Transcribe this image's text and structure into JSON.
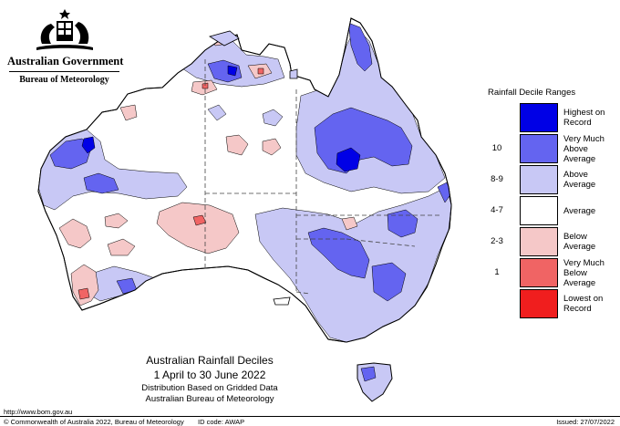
{
  "header": {
    "government": "Australian Government",
    "bureau": "Bureau of Meteorology"
  },
  "legend": {
    "title": "Rainfall Decile Ranges",
    "items": [
      {
        "range": "",
        "label": "Highest on Record",
        "color": "#0000e6"
      },
      {
        "range": "10",
        "label": "Very Much Above Average",
        "color": "#6464f0"
      },
      {
        "range": "8-9",
        "label": "Above Average",
        "color": "#c8c8f5"
      },
      {
        "range": "4-7",
        "label": "Average",
        "color": "#ffffff"
      },
      {
        "range": "2-3",
        "label": "Below Average",
        "color": "#f5c8c8"
      },
      {
        "range": "1",
        "label": "Very Much Below Average",
        "color": "#f06464"
      },
      {
        "range": "",
        "label": "Lowest on Record",
        "color": "#f01e1e"
      }
    ]
  },
  "map_title": {
    "line1": "Australian Rainfall Deciles",
    "line2": "1 April to 30 June 2022",
    "line3": "Distribution Based on Gridded Data",
    "line4": "Australian Bureau of Meteorology"
  },
  "footer": {
    "url": "http://www.bom.gov.au",
    "copyright": "© Commonwealth of Australia 2022, Bureau of Meteorology",
    "id_code": "ID code: AWAP",
    "issued": "Issued: 27/07/2022"
  }
}
